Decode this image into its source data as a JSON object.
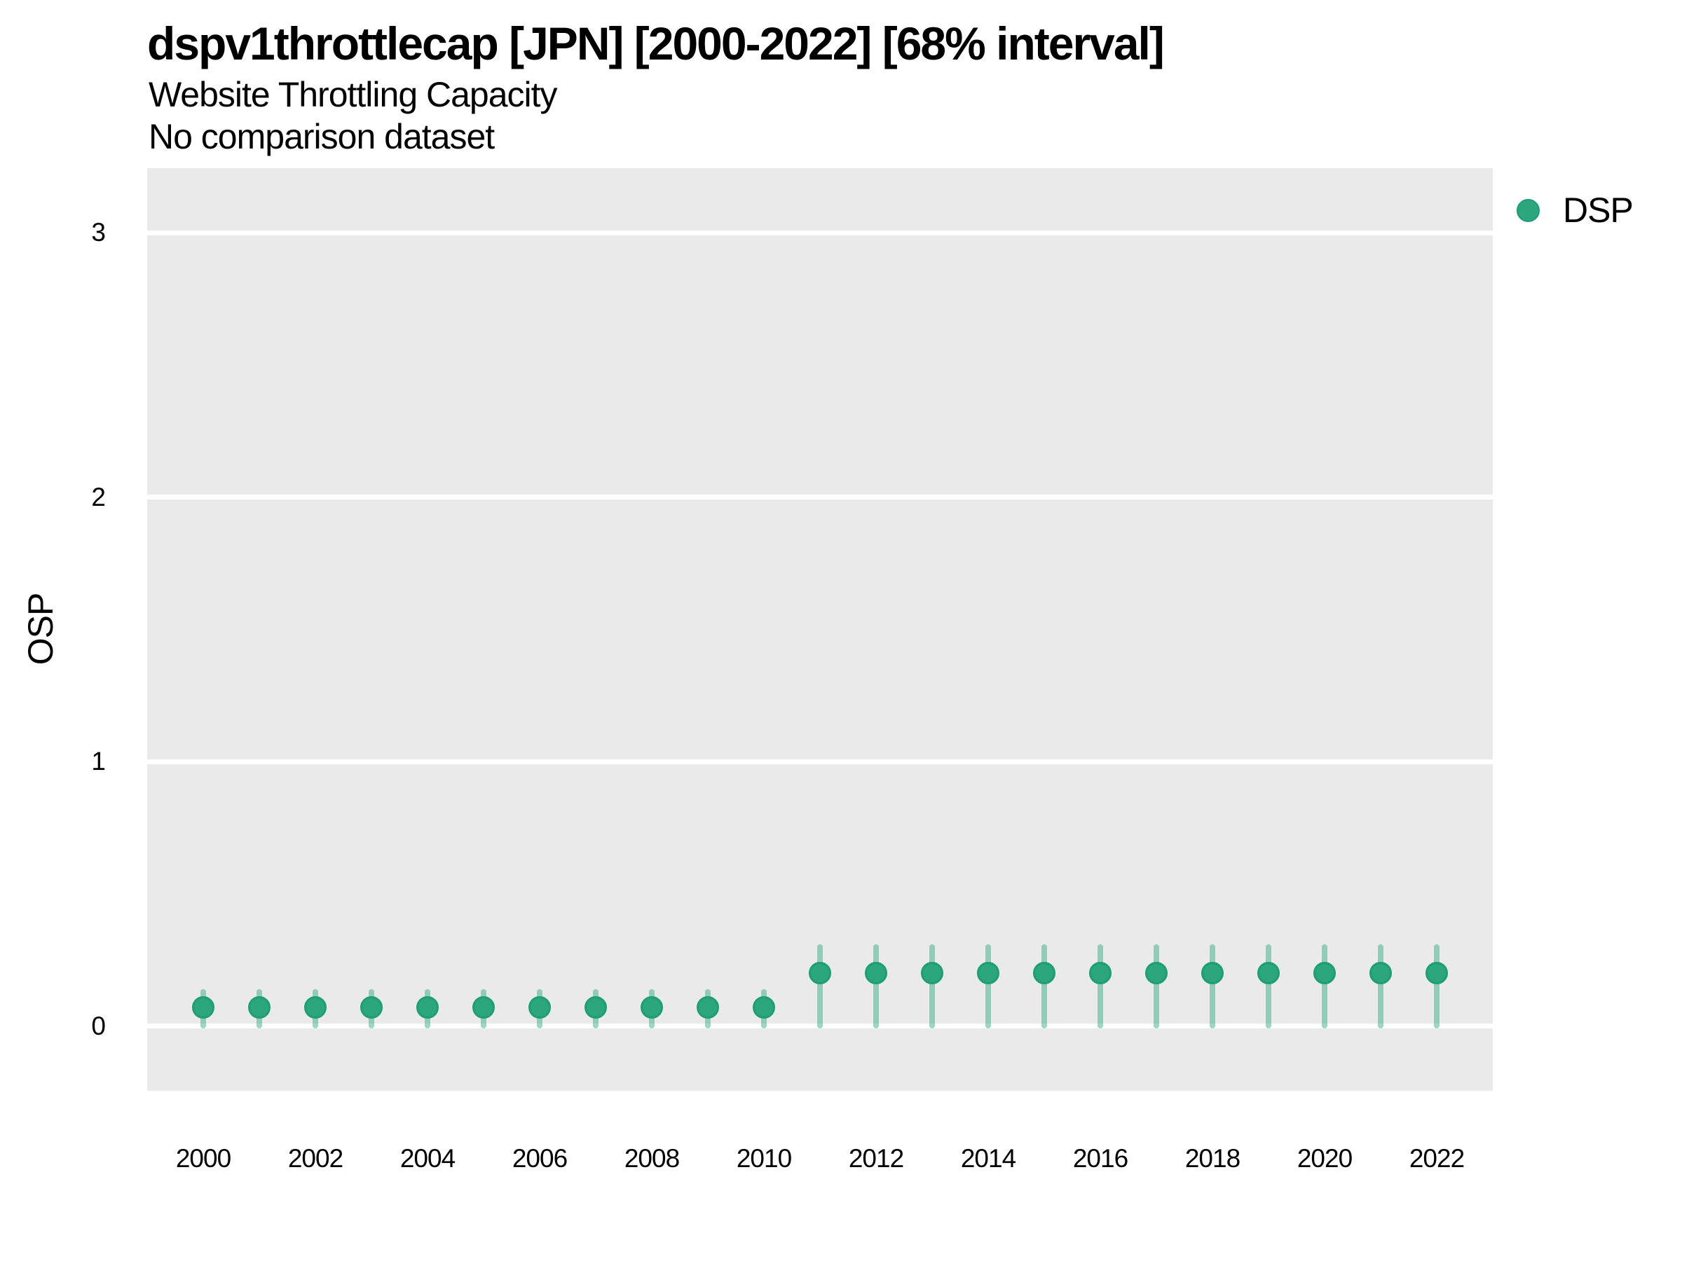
{
  "header": {
    "title": "dspv1throttlecap [JPN] [2000-2022] [68% interval]",
    "subtitle": "Website Throttling Capacity",
    "comparison_note": "No comparison dataset"
  },
  "legend": {
    "position": "top-right",
    "items": [
      {
        "label": "DSP",
        "color": "#2ba67d"
      }
    ]
  },
  "colors": {
    "point_fill": "#2ba67d",
    "point_border": "#1d9e73",
    "interval": "rgba(42,165,124,0.45)",
    "panel_bg": "#eaeaea",
    "gridline": "#ffffff",
    "text": "#000000"
  },
  "axes": {
    "y_label": "OSP",
    "y_ticks": [
      0,
      1,
      2,
      3
    ],
    "x_ticks": [
      2000,
      2002,
      2004,
      2006,
      2008,
      2010,
      2012,
      2014,
      2016,
      2018,
      2020,
      2022
    ]
  },
  "chart_data": {
    "type": "scatter",
    "title": "dspv1throttlecap [JPN] [2000-2022] [68% interval]",
    "subtitle": "Website Throttling Capacity",
    "note": "No comparison dataset",
    "interval_level": "68%",
    "xlabel": "",
    "ylabel": "OSP",
    "xlim": [
      1999,
      2023
    ],
    "ylim": [
      -0.245,
      3.245
    ],
    "grid": "horizontal-major-only",
    "legend_position": "top-right",
    "series": [
      {
        "name": "DSP",
        "x": [
          2000,
          2001,
          2002,
          2003,
          2004,
          2005,
          2006,
          2007,
          2008,
          2009,
          2010,
          2011,
          2012,
          2013,
          2014,
          2015,
          2016,
          2017,
          2018,
          2019,
          2020,
          2021,
          2022
        ],
        "y": [
          0.07,
          0.07,
          0.07,
          0.07,
          0.07,
          0.07,
          0.07,
          0.07,
          0.07,
          0.07,
          0.07,
          0.2,
          0.2,
          0.2,
          0.2,
          0.2,
          0.2,
          0.2,
          0.2,
          0.2,
          0.2,
          0.2,
          0.2
        ],
        "y_lo": [
          -0.01,
          -0.01,
          -0.01,
          -0.01,
          -0.01,
          -0.01,
          -0.01,
          -0.01,
          -0.01,
          -0.01,
          -0.01,
          -0.01,
          -0.01,
          -0.01,
          -0.01,
          -0.01,
          -0.01,
          -0.01,
          -0.01,
          -0.01,
          -0.01,
          -0.01,
          -0.01
        ],
        "y_hi": [
          0.14,
          0.14,
          0.14,
          0.14,
          0.14,
          0.14,
          0.14,
          0.14,
          0.14,
          0.14,
          0.14,
          0.31,
          0.31,
          0.31,
          0.31,
          0.31,
          0.31,
          0.31,
          0.31,
          0.31,
          0.31,
          0.31,
          0.31
        ]
      }
    ]
  }
}
